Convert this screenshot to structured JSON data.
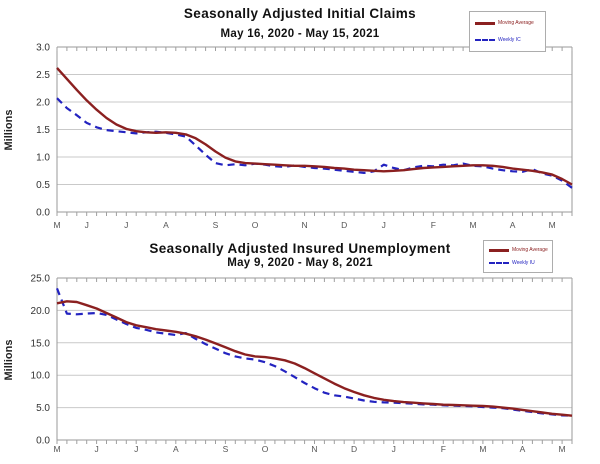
{
  "chart_data": [
    {
      "type": "line",
      "title": "Seasonally Adjusted Initial Claims",
      "subtitle": "May 16, 2020 - May 15, 2021",
      "ylabel": "Millions",
      "ylim": [
        0.0,
        3.0
      ],
      "ytick_step": 0.5,
      "ytick_labels": [
        "3.0",
        "2.5",
        "2.0",
        "1.5",
        "1.0",
        "0.5",
        "0.0"
      ],
      "weeks": 53,
      "grid": true,
      "legend_position": "top-right",
      "x_month_labels": [
        {
          "label": "M",
          "week": 1
        },
        {
          "label": "J",
          "week": 4
        },
        {
          "label": "J",
          "week": 8
        },
        {
          "label": "A",
          "week": 12
        },
        {
          "label": "S",
          "week": 17
        },
        {
          "label": "O",
          "week": 21
        },
        {
          "label": "N",
          "week": 26
        },
        {
          "label": "D",
          "week": 30
        },
        {
          "label": "J",
          "week": 34
        },
        {
          "label": "F",
          "week": 39
        },
        {
          "label": "M",
          "week": 43
        },
        {
          "label": "A",
          "week": 47
        },
        {
          "label": "M",
          "week": 51
        }
      ],
      "series": [
        {
          "name": "Moving Average",
          "color": "#8b2020",
          "style": "solid",
          "values": [
            2.62,
            2.42,
            2.22,
            2.03,
            1.86,
            1.71,
            1.59,
            1.51,
            1.47,
            1.45,
            1.44,
            1.45,
            1.44,
            1.41,
            1.34,
            1.23,
            1.1,
            0.99,
            0.92,
            0.89,
            0.88,
            0.87,
            0.86,
            0.85,
            0.84,
            0.84,
            0.83,
            0.82,
            0.8,
            0.79,
            0.77,
            0.76,
            0.75,
            0.74,
            0.75,
            0.76,
            0.78,
            0.8,
            0.81,
            0.82,
            0.83,
            0.84,
            0.85,
            0.85,
            0.84,
            0.82,
            0.79,
            0.77,
            0.75,
            0.72,
            0.68,
            0.6,
            0.5
          ]
        },
        {
          "name": "Weekly IC",
          "color": "#2323c0",
          "style": "dashed",
          "values": [
            2.07,
            1.89,
            1.76,
            1.62,
            1.54,
            1.49,
            1.47,
            1.45,
            1.43,
            1.45,
            1.46,
            1.44,
            1.41,
            1.37,
            1.21,
            1.04,
            0.89,
            0.85,
            0.87,
            0.85,
            0.88,
            0.86,
            0.83,
            0.82,
            0.85,
            0.82,
            0.8,
            0.79,
            0.77,
            0.75,
            0.73,
            0.71,
            0.74,
            0.86,
            0.8,
            0.76,
            0.81,
            0.84,
            0.83,
            0.86,
            0.85,
            0.88,
            0.84,
            0.83,
            0.79,
            0.76,
            0.74,
            0.73,
            0.78,
            0.7,
            0.66,
            0.57,
            0.44
          ]
        }
      ]
    },
    {
      "type": "line",
      "title": "Seasonally Adjusted Insured Unemployment",
      "subtitle": "May 9, 2020 - May 8, 2021",
      "ylabel": "Millions",
      "ylim": [
        0.0,
        25.0
      ],
      "ytick_step": 5.0,
      "ytick_labels": [
        "25.0",
        "20.0",
        "15.0",
        "10.0",
        "5.0",
        "0.0"
      ],
      "weeks": 53,
      "grid": true,
      "legend_position": "top-right",
      "x_month_labels": [
        {
          "label": "M",
          "week": 1
        },
        {
          "label": "J",
          "week": 5
        },
        {
          "label": "J",
          "week": 9
        },
        {
          "label": "A",
          "week": 13
        },
        {
          "label": "S",
          "week": 18
        },
        {
          "label": "O",
          "week": 22
        },
        {
          "label": "N",
          "week": 27
        },
        {
          "label": "D",
          "week": 31
        },
        {
          "label": "J",
          "week": 35
        },
        {
          "label": "F",
          "week": 40
        },
        {
          "label": "M",
          "week": 44
        },
        {
          "label": "A",
          "week": 48
        },
        {
          "label": "M",
          "week": 52
        }
      ],
      "series": [
        {
          "name": "Moving Average",
          "color": "#8b2020",
          "style": "solid",
          "values": [
            21.1,
            21.4,
            21.3,
            20.8,
            20.3,
            19.6,
            18.9,
            18.2,
            17.7,
            17.4,
            17.1,
            16.9,
            16.7,
            16.4,
            16.0,
            15.5,
            14.9,
            14.3,
            13.7,
            13.2,
            12.9,
            12.8,
            12.6,
            12.3,
            11.8,
            11.1,
            10.3,
            9.5,
            8.7,
            8.0,
            7.4,
            6.9,
            6.5,
            6.2,
            6.0,
            5.85,
            5.75,
            5.65,
            5.55,
            5.45,
            5.4,
            5.35,
            5.3,
            5.25,
            5.15,
            5.0,
            4.85,
            4.65,
            4.45,
            4.25,
            4.05,
            3.9,
            3.75
          ]
        },
        {
          "name": "Weekly IU",
          "color": "#2323c0",
          "style": "dashed",
          "values": [
            23.4,
            19.5,
            19.4,
            19.5,
            19.6,
            19.3,
            18.6,
            17.9,
            17.3,
            17.0,
            16.6,
            16.4,
            16.2,
            16.5,
            15.6,
            14.8,
            14.1,
            13.4,
            12.9,
            12.6,
            12.4,
            12.0,
            11.4,
            10.6,
            9.7,
            8.8,
            8.0,
            7.3,
            6.9,
            6.7,
            6.4,
            6.1,
            5.9,
            5.8,
            5.75,
            5.7,
            5.6,
            5.5,
            5.45,
            5.35,
            5.3,
            5.25,
            5.2,
            5.1,
            5.0,
            4.9,
            4.7,
            4.5,
            4.3,
            4.1,
            3.95,
            3.8,
            3.75
          ]
        }
      ]
    }
  ]
}
